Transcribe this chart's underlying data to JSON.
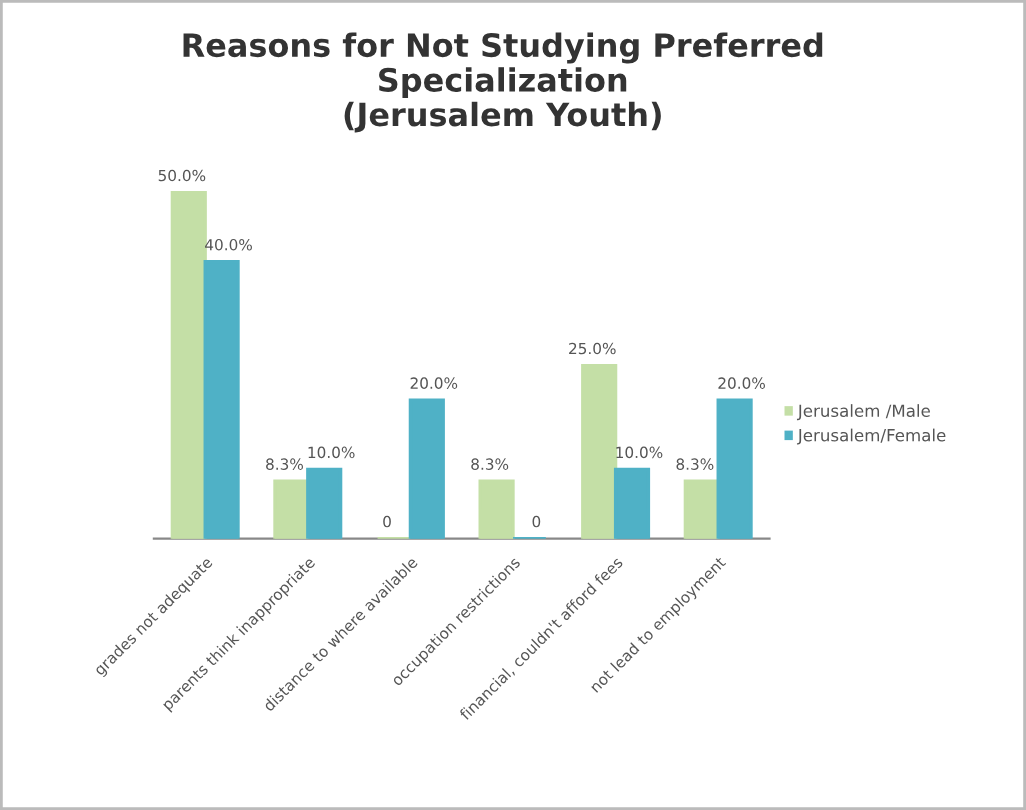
{
  "chart_data": {
    "type": "bar",
    "title": "Reasons for Not Studying Preferred\nSpecialization\n(Jerusalem Youth)",
    "categories": [
      "grades not adequate",
      "parents think inappropriate",
      "distance to where available",
      "occupation restrictions",
      "financial, couldn't afford fees",
      "not lead to employment"
    ],
    "series": [
      {
        "name": "Jerusalem /Male",
        "color": "#c4dfa6",
        "values": [
          50,
          8.3,
          0,
          8.3,
          25,
          8.3
        ],
        "value_labels": [
          "50.0%",
          "8.3%",
          "0",
          "8.3%",
          "25.0%",
          "8.3%"
        ]
      },
      {
        "name": "Jerusalem/Female",
        "color": "#4fb1c6",
        "values": [
          40,
          10,
          20,
          0,
          10,
          20
        ],
        "value_labels": [
          "40.0%",
          "10.0%",
          "20.0%",
          "0",
          "10.0%",
          "20.0%"
        ]
      }
    ],
    "tick_labels": "x",
    "grid": false,
    "legend": "right"
  }
}
